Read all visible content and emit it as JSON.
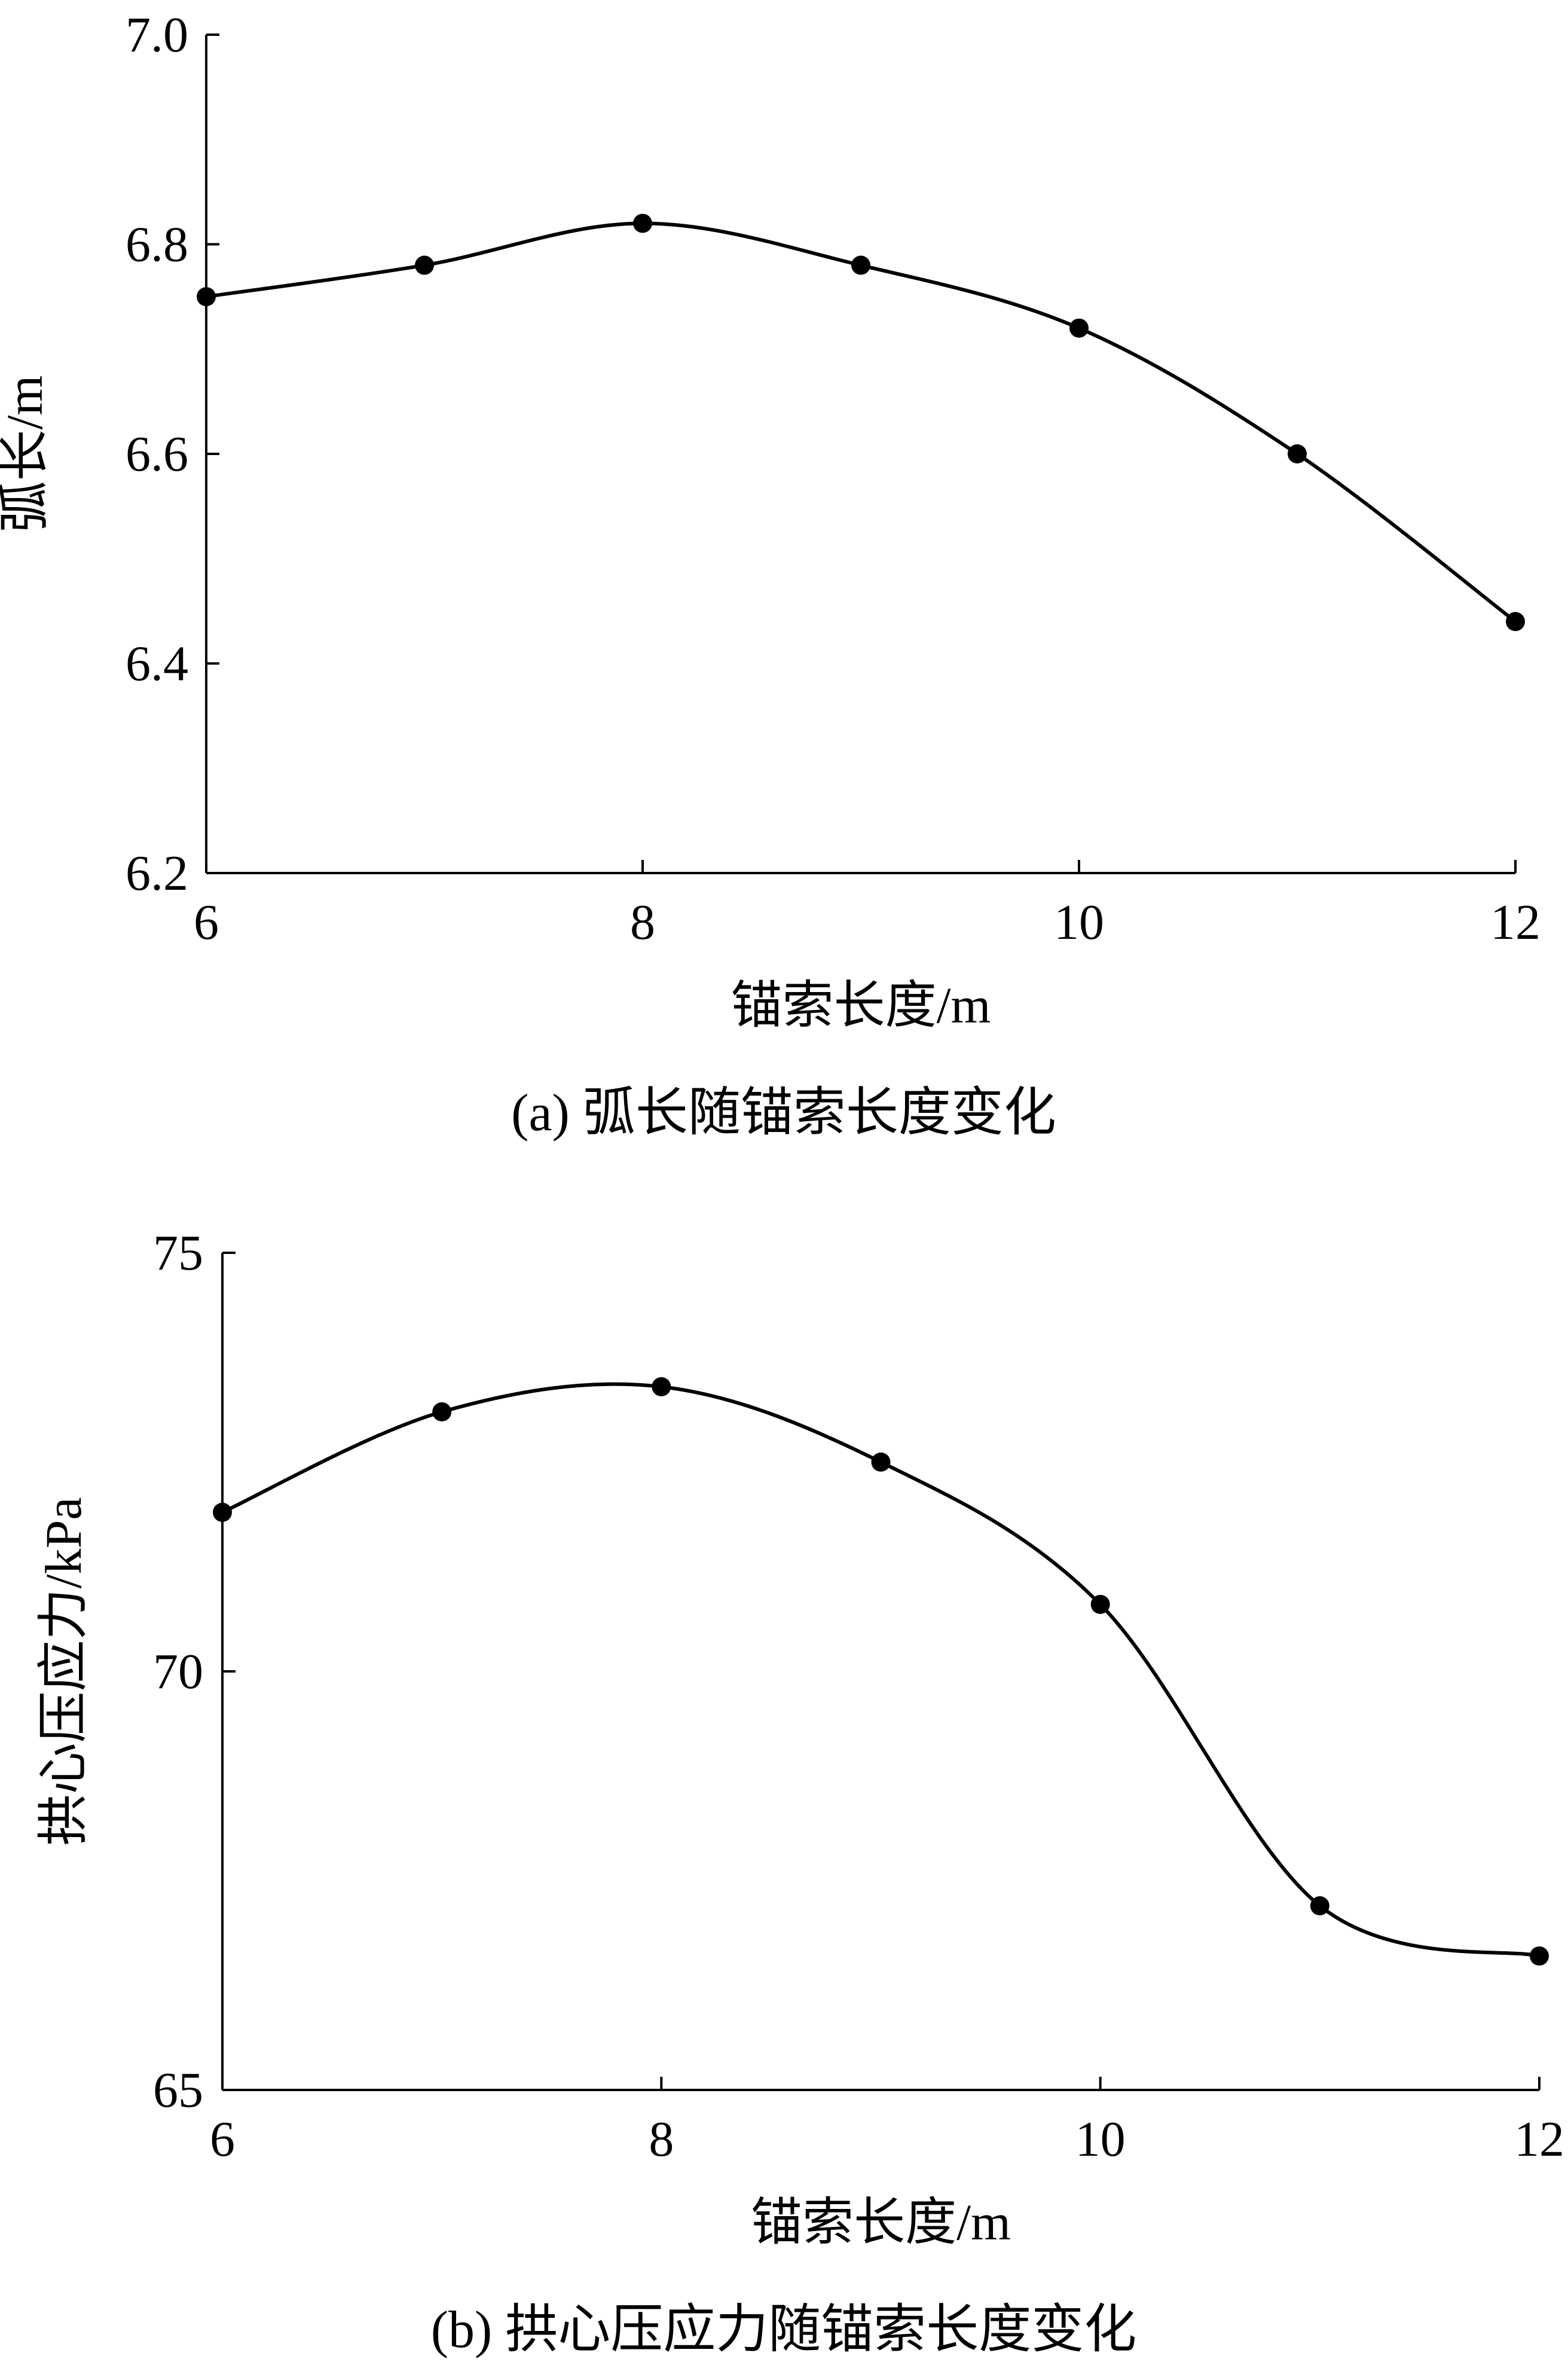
{
  "chart_data": [
    {
      "type": "line",
      "caption": "(a)  弧长随锚索长度变化",
      "xlabel": "锚索长度/m",
      "ylabel": "弧长/m",
      "xlim": [
        6,
        12
      ],
      "ylim": [
        6.2,
        7.0
      ],
      "xticks": [
        6,
        8,
        10,
        12
      ],
      "yticks": [
        6.2,
        6.4,
        6.6,
        6.8,
        7.0
      ],
      "xtick_labels": [
        "6",
        "8",
        "10",
        "12"
      ],
      "ytick_labels": [
        "6.2",
        "6.4",
        "6.6",
        "6.8",
        "7.0"
      ],
      "smooth": true,
      "markers": true,
      "grid": false,
      "series": [
        {
          "x": [
            6,
            7,
            8,
            9,
            10,
            11,
            12
          ],
          "values": [
            6.75,
            6.78,
            6.82,
            6.78,
            6.72,
            6.6,
            6.44
          ]
        }
      ]
    },
    {
      "type": "line",
      "caption": "(b)  拱心压应力随锚索长度变化",
      "xlabel": "锚索长度/m",
      "ylabel": "拱心压应力/kPa",
      "xlim": [
        6,
        12
      ],
      "ylim": [
        65,
        75
      ],
      "xticks": [
        6,
        8,
        10,
        12
      ],
      "yticks": [
        65,
        70,
        75
      ],
      "xtick_labels": [
        "6",
        "8",
        "10",
        "12"
      ],
      "ytick_labels": [
        "65",
        "70",
        "75"
      ],
      "smooth": true,
      "markers": true,
      "grid": false,
      "series": [
        {
          "x": [
            6,
            7,
            8,
            9,
            10,
            11,
            12
          ],
          "values": [
            71.9,
            73.1,
            73.4,
            72.5,
            70.8,
            67.2,
            66.6
          ]
        }
      ]
    }
  ],
  "style": {
    "line_color": "#000000",
    "marker_color": "#000000",
    "background": "#ffffff"
  }
}
